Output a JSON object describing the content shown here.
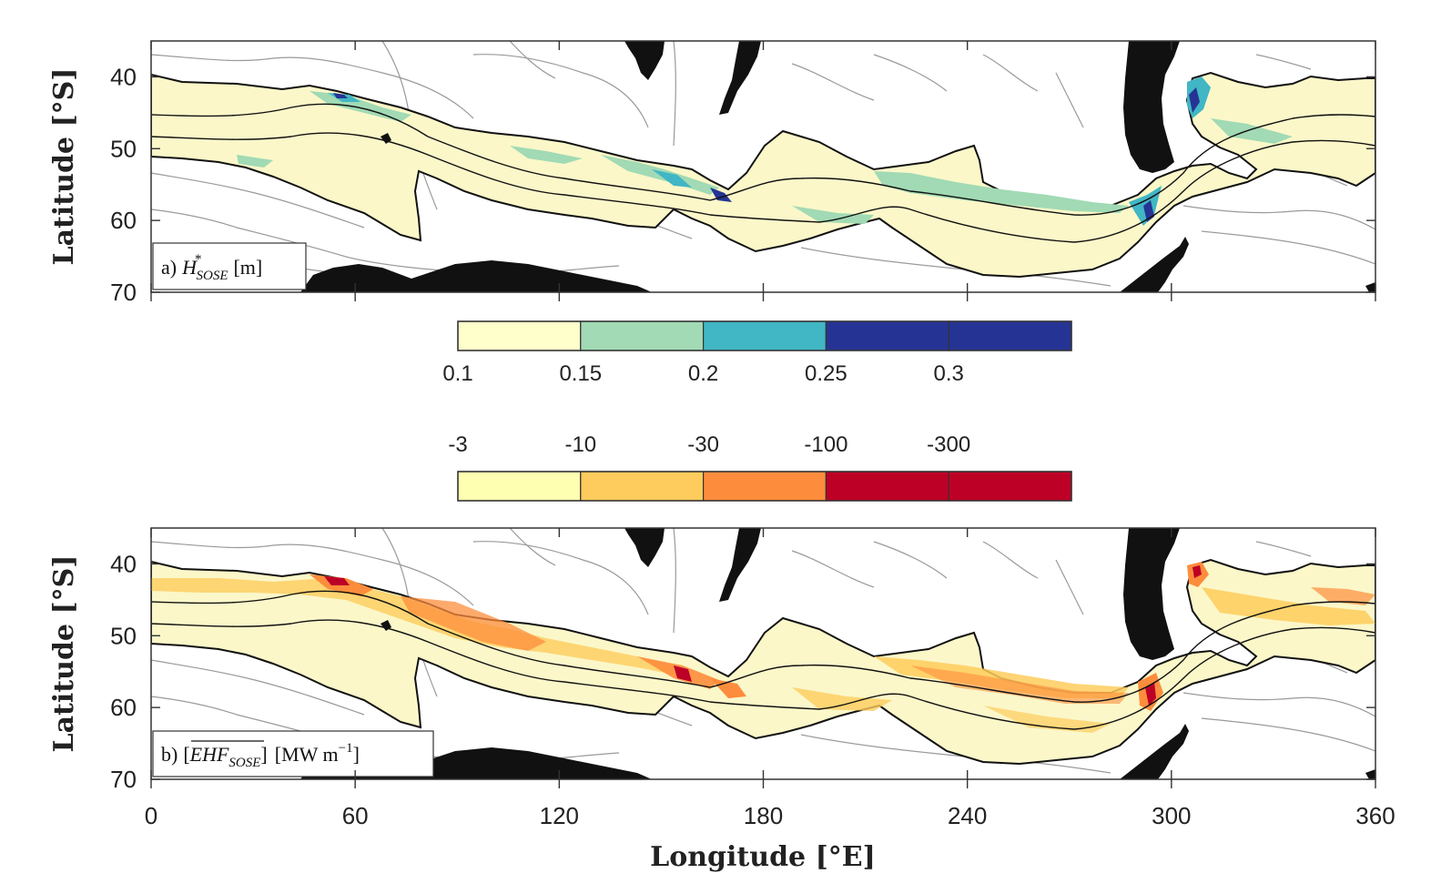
{
  "figure": {
    "panel_a": {
      "label_prefix": "a)",
      "symbol": "H",
      "superscript": "*",
      "subscript": "SOSE",
      "unit": "[m]"
    },
    "panel_b": {
      "label_prefix": "b)",
      "symbol": "EHF",
      "subscript": "SOSE",
      "unit_open": "[MW m",
      "unit_exp": "−1",
      "unit_close": "]"
    },
    "y_axis_label": "Latitude [°S]",
    "x_axis_label": "Longitude [°E]",
    "y_ticks": [
      "40",
      "50",
      "60",
      "70"
    ],
    "x_ticks": [
      "0",
      "60",
      "120",
      "180",
      "240",
      "300",
      "360"
    ],
    "colorbar_a": {
      "labels": [
        "0.1",
        "0.15",
        "0.2",
        "0.25",
        "0.3"
      ],
      "colors": [
        "#ffffcc",
        "#a1dab4",
        "#41b6c4",
        "#253494",
        "#253494"
      ]
    },
    "colorbar_b": {
      "labels": [
        "-3",
        "-10",
        "-30",
        "-100",
        "-300"
      ],
      "colors": [
        "#ffffb2",
        "#fecc5c",
        "#fd8d3c",
        "#bd0026",
        "#bd0026"
      ]
    },
    "colors": {
      "land": "#111111",
      "band_a_main": "#fbf7c9",
      "band_b_main": "#fdfbe0",
      "contour_gray": "#9a9a9a",
      "front_line": "#111111"
    }
  }
}
